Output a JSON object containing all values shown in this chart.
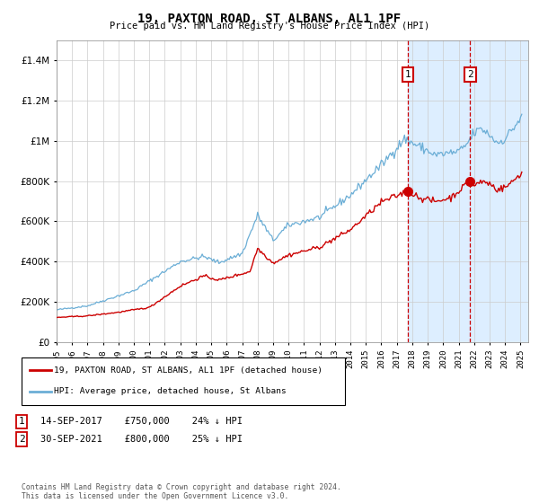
{
  "title": "19, PAXTON ROAD, ST ALBANS, AL1 1PF",
  "subtitle": "Price paid vs. HM Land Registry's House Price Index (HPI)",
  "legend_line1": "19, PAXTON ROAD, ST ALBANS, AL1 1PF (detached house)",
  "legend_line2": "HPI: Average price, detached house, St Albans",
  "annotation1_label": "1",
  "annotation1_date": "14-SEP-2017",
  "annotation1_price": "£750,000",
  "annotation1_hpi": "24% ↓ HPI",
  "annotation1_year": 2017.71,
  "annotation1_value": 750000,
  "annotation2_label": "2",
  "annotation2_date": "30-SEP-2021",
  "annotation2_price": "£800,000",
  "annotation2_hpi": "25% ↓ HPI",
  "annotation2_year": 2021.75,
  "annotation2_value": 800000,
  "hpi_color": "#6baed6",
  "price_color": "#cc0000",
  "bg_color": "#ffffff",
  "shade_color": "#ddeeff",
  "grid_color": "#cccccc",
  "footer": "Contains HM Land Registry data © Crown copyright and database right 2024.\nThis data is licensed under the Open Government Licence v3.0.",
  "ylim": [
    0,
    1500000
  ],
  "yticks": [
    0,
    200000,
    400000,
    600000,
    800000,
    1000000,
    1200000,
    1400000
  ],
  "xlim_start": 1995.0,
  "xlim_end": 2025.5
}
